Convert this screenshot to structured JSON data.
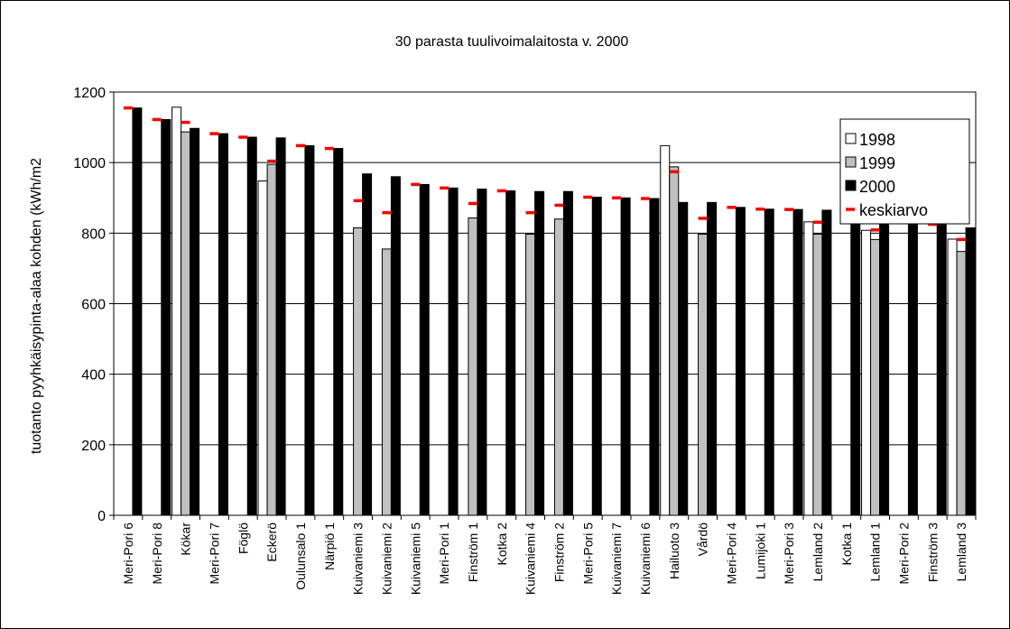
{
  "chart_data": {
    "type": "bar",
    "title": "30 parasta tuulivoimalaitosta v. 2000",
    "xlabel": "",
    "ylabel": "tuotanto pyyhkäisypinta-alaa kohden (kWh/m2",
    "ylim": [
      0,
      1200
    ],
    "yticks": [
      0,
      200,
      400,
      600,
      800,
      1000,
      1200
    ],
    "grid": true,
    "legend_position": "top-right",
    "categories": [
      "Meri-Pori 6",
      "Meri-Pori 8",
      "Kökar",
      "Meri-Pori 7",
      "Föglö",
      "Eckerö",
      "Oulunsalo 1",
      "Närpiö 1",
      "Kuivaniemi 3",
      "Kuivaniemi 2",
      "Kuivaniemi 5",
      "Meri-Pori 1",
      "Finström 1",
      "Kotka 2",
      "Kuivaniemi 4",
      "Finström 2",
      "Meri-Pori 5",
      "Kuivaniemi 7",
      "Kuivaniemi 6",
      "Hailuoto 3",
      "Vårdö",
      "Meri-Pori 4",
      "Lumijoki 1",
      "Meri-Pori 3",
      "Lemland 2",
      "Kotka 1",
      "Lemland 1",
      "Meri-Pori 2",
      "Finström 3",
      "Lemland 3"
    ],
    "series": [
      {
        "name": "1998",
        "color": "#ffffff",
        "values": [
          null,
          null,
          1157,
          null,
          null,
          948,
          null,
          null,
          null,
          null,
          null,
          null,
          null,
          null,
          null,
          null,
          null,
          null,
          null,
          1048,
          null,
          null,
          null,
          null,
          832,
          null,
          808,
          null,
          null,
          783
        ]
      },
      {
        "name": "1999",
        "color": "#c0c0c0",
        "values": [
          null,
          null,
          1087,
          null,
          null,
          995,
          null,
          null,
          815,
          755,
          null,
          null,
          843,
          null,
          797,
          840,
          null,
          null,
          null,
          988,
          797,
          null,
          null,
          null,
          797,
          null,
          782,
          null,
          null,
          748
        ]
      },
      {
        "name": "2000",
        "color": "#000000",
        "values": [
          1155,
          1122,
          1097,
          1082,
          1072,
          1070,
          1048,
          1040,
          968,
          960,
          938,
          928,
          925,
          920,
          918,
          918,
          902,
          900,
          898,
          887,
          887,
          873,
          868,
          867,
          865,
          853,
          837,
          832,
          825,
          815
        ]
      },
      {
        "name": "keskiarvo",
        "color": "#ff0000",
        "marker": "dash",
        "values": [
          1155,
          1122,
          1114,
          1082,
          1072,
          1004,
          1048,
          1040,
          892,
          858,
          938,
          928,
          884,
          920,
          858,
          879,
          902,
          900,
          898,
          974,
          842,
          873,
          868,
          867,
          831,
          853,
          809,
          832,
          825,
          782
        ]
      }
    ]
  }
}
